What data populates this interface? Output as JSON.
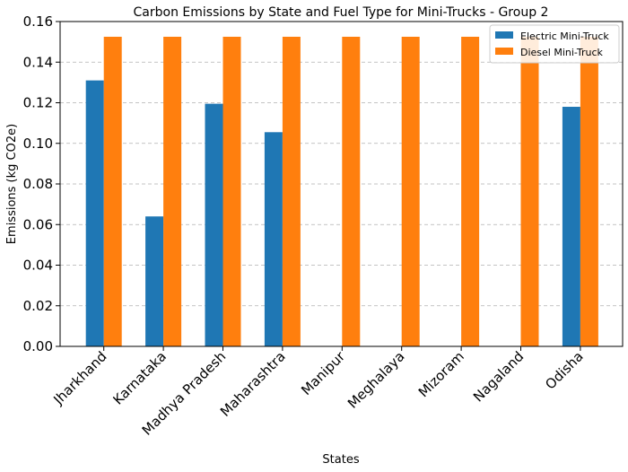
{
  "chart_data": {
    "type": "bar",
    "title": "Carbon Emissions by State and Fuel Type for Mini-Trucks - Group 2",
    "xlabel": "States",
    "ylabel": "Emissions (kg CO2e)",
    "ylim": [
      0,
      0.16
    ],
    "yticks": [
      "0.00",
      "0.02",
      "0.04",
      "0.06",
      "0.08",
      "0.10",
      "0.12",
      "0.14",
      "0.16"
    ],
    "grid": "y-dashed",
    "legend_position": "top-right",
    "categories": [
      "Jharkhand",
      "Karnataka",
      "Madhya Pradesh",
      "Maharashtra",
      "Manipur",
      "Meghalaya",
      "Mizoram",
      "Nagaland",
      "Odisha"
    ],
    "series": [
      {
        "name": "Electric Mini-Truck",
        "color": "#1f77b4",
        "values": [
          0.131,
          0.064,
          0.1195,
          0.1055,
          0,
          0,
          0,
          0,
          0.118
        ]
      },
      {
        "name": "Diesel Mini-Truck",
        "color": "#ff7f0e",
        "values": [
          0.1525,
          0.1525,
          0.1525,
          0.1525,
          0.1525,
          0.1525,
          0.1525,
          0.1525,
          0.1525
        ]
      }
    ]
  }
}
